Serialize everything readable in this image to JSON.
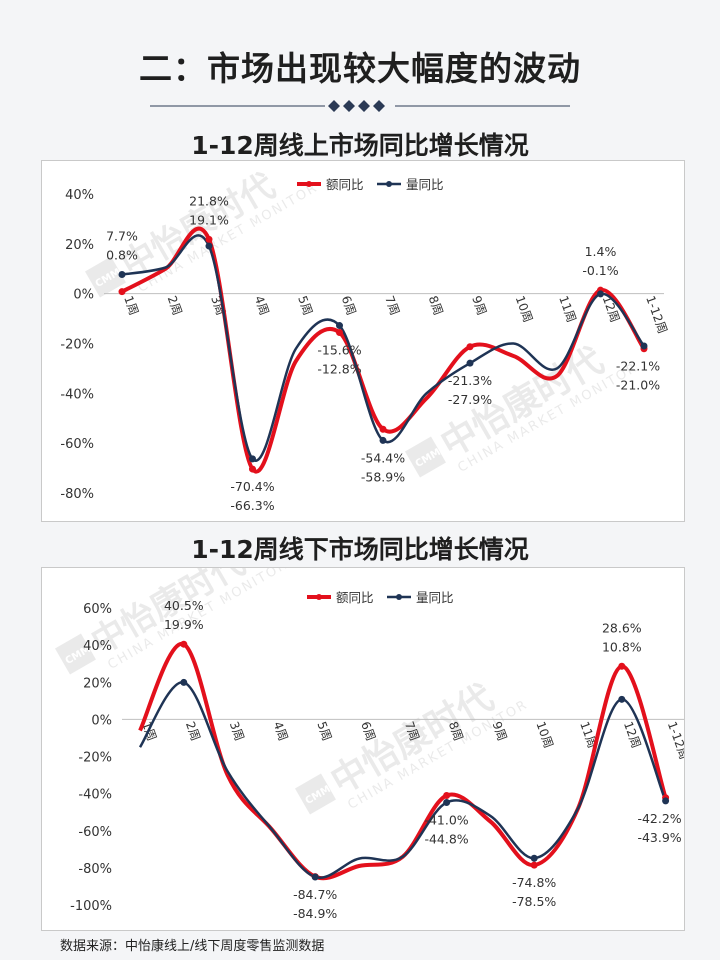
{
  "page": {
    "title": "二：市场出现较大幅度的波动",
    "source": "数据来源：中怡康线上/线下周度零售监测数据",
    "watermark_cn": "中怡康时代",
    "watermark_en": "CHINA MARKET MONITOR",
    "watermark_logo": "CMM"
  },
  "colors": {
    "amount": "#e3101c",
    "volume": "#1f3455"
  },
  "chart_data": [
    {
      "type": "line",
      "title": "1-12周线上市场同比增长情况",
      "categories": [
        "1周",
        "2周",
        "3周",
        "4周",
        "5周",
        "6周",
        "7周",
        "8周",
        "9周",
        "10周",
        "11周",
        "12周",
        "1-12周"
      ],
      "series": [
        {
          "name": "额同比",
          "values": [
            0.8,
            10,
            21.8,
            -70.4,
            -27,
            -15.6,
            -54.4,
            -42,
            -21.3,
            -25,
            -33,
            1.4,
            -22.1
          ]
        },
        {
          "name": "量同比",
          "values": [
            7.7,
            10.5,
            19.1,
            -66.3,
            -22,
            -12.8,
            -58.9,
            -40,
            -27.9,
            -20,
            -30,
            -0.1,
            -21.0
          ]
        }
      ],
      "data_labels": {
        "0": [
          "7.7%",
          "0.8%"
        ],
        "2": [
          "21.8%",
          "19.1%"
        ],
        "3": [
          "-70.4%",
          "-66.3%"
        ],
        "5": [
          "-15.6%",
          "-12.8%"
        ],
        "6": [
          "-54.4%",
          "-58.9%"
        ],
        "8": [
          "-21.3%",
          "-27.9%"
        ],
        "11": [
          "1.4%",
          "-0.1%"
        ],
        "12": [
          "-22.1%",
          "-21.0%"
        ]
      },
      "yticks": [
        "40%",
        "20%",
        "0%",
        "-20%",
        "-40%",
        "-60%",
        "-80%"
      ],
      "ylim": [
        -80,
        40
      ],
      "legend": "top"
    },
    {
      "type": "line",
      "title": "1-12周线下市场同比增长情况",
      "categories": [
        "1周",
        "2周",
        "3周",
        "4周",
        "5周",
        "6周",
        "7周",
        "8周",
        "9周",
        "10周",
        "11周",
        "12周",
        "1-12周"
      ],
      "series": [
        {
          "name": "额同比",
          "values": [
            -6,
            40.5,
            -30,
            -59,
            -84.7,
            -79,
            -74,
            -41.0,
            -55,
            -78.5,
            -48,
            28.6,
            -42.2
          ]
        },
        {
          "name": "量同比",
          "values": [
            -15,
            19.9,
            -28,
            -59,
            -84.9,
            -75,
            -74,
            -44.8,
            -52,
            -74.8,
            -48,
            10.8,
            -43.9
          ]
        }
      ],
      "data_labels": {
        "1": [
          "40.5%",
          "19.9%"
        ],
        "4": [
          "-84.7%",
          "-84.9%"
        ],
        "7": [
          "-41.0%",
          "-44.8%"
        ],
        "9": [
          "-74.8%",
          "-78.5%"
        ],
        "11": [
          "28.6%",
          "10.8%"
        ],
        "12": [
          "-42.2%",
          "-43.9%"
        ]
      },
      "yticks": [
        "60%",
        "40%",
        "20%",
        "0%",
        "-20%",
        "-40%",
        "-60%",
        "-80%",
        "-100%"
      ],
      "ylim": [
        -100,
        60
      ],
      "legend": "top-right"
    }
  ]
}
